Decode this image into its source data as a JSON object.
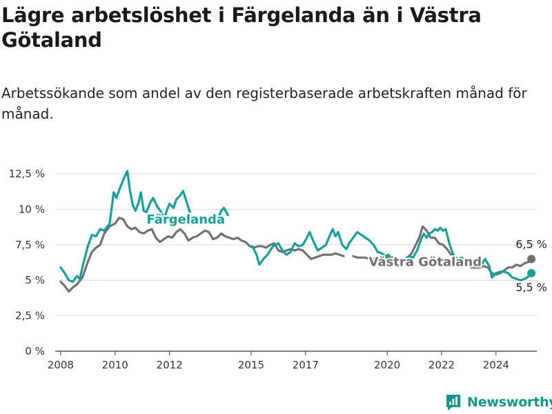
{
  "header": {
    "title": "Lägre arbetslöshet i Färgelanda än i Västra Götaland",
    "subtitle": "Arbetssökande som andel av den registerbaserade arbetskraften månad för månad."
  },
  "brand": {
    "name": "Newsworthy",
    "color": "#14958a"
  },
  "chart_data": {
    "type": "line",
    "title": "Lägre arbetslöshet i Färgelanda än i Västra Götaland",
    "subtitle": "Arbetssökande som andel av den registerbaserade arbetskraften månad för månad.",
    "xlabel": "",
    "ylabel": "",
    "xlim": [
      2007.8,
      2025.5
    ],
    "ylim": [
      0,
      12.5
    ],
    "yticks": [
      0,
      2.5,
      5,
      7.5,
      10,
      12.5
    ],
    "ytick_labels": [
      "0 %",
      "2,5 %",
      "5 %",
      "7,5 %",
      "10 %",
      "12,5 %"
    ],
    "xticks": [
      2008,
      2010,
      2012,
      2015,
      2017,
      2020,
      2022,
      2024
    ],
    "xtick_labels": [
      "2008",
      "2010",
      "2012",
      "2015",
      "2017",
      "2020",
      "2022",
      "2024"
    ],
    "grid": "horizontal",
    "legend": "direct labels",
    "series": [
      {
        "name": "Färgelanda",
        "color": "#14a098",
        "label_at": [
          2012.6,
          9.0
        ],
        "end_label": "5,5 %",
        "segments": [
          [
            [
              2008.0,
              5.9
            ],
            [
              2008.15,
              5.5
            ],
            [
              2008.3,
              5.0
            ],
            [
              2008.45,
              4.9
            ],
            [
              2008.6,
              5.3
            ],
            [
              2008.7,
              5.1
            ],
            [
              2008.85,
              6.3
            ],
            [
              2009.0,
              7.4
            ],
            [
              2009.15,
              8.2
            ],
            [
              2009.3,
              8.1
            ],
            [
              2009.45,
              8.6
            ],
            [
              2009.6,
              8.5
            ],
            [
              2009.8,
              9.0
            ],
            [
              2009.95,
              11.2
            ],
            [
              2010.05,
              10.8
            ],
            [
              2010.2,
              11.6
            ],
            [
              2010.35,
              12.3
            ],
            [
              2010.45,
              12.7
            ],
            [
              2010.55,
              11.3
            ],
            [
              2010.65,
              10.3
            ],
            [
              2010.75,
              9.9
            ],
            [
              2010.85,
              10.4
            ],
            [
              2010.95,
              11.2
            ],
            [
              2011.05,
              9.9
            ],
            [
              2011.15,
              9.8
            ],
            [
              2011.3,
              10.5
            ],
            [
              2011.4,
              10.8
            ],
            [
              2011.55,
              10.2
            ],
            [
              2011.7,
              9.8
            ],
            [
              2011.8,
              9.3
            ],
            [
              2011.9,
              9.9
            ],
            [
              2012.0,
              10.4
            ],
            [
              2012.15,
              10.1
            ],
            [
              2012.25,
              10.7
            ],
            [
              2012.4,
              11.0
            ],
            [
              2012.5,
              11.3
            ],
            [
              2012.6,
              10.7
            ],
            [
              2012.75,
              9.8
            ]
          ],
          [
            [
              2013.8,
              9.4
            ],
            [
              2013.9,
              9.9
            ],
            [
              2014.0,
              10.1
            ],
            [
              2014.15,
              9.6
            ]
          ],
          [
            [
              2015.05,
              7.4
            ],
            [
              2015.2,
              6.8
            ],
            [
              2015.3,
              6.1
            ],
            [
              2015.45,
              6.5
            ],
            [
              2015.6,
              6.8
            ],
            [
              2015.8,
              7.4
            ],
            [
              2016.0,
              7.6
            ],
            [
              2016.15,
              7.1
            ],
            [
              2016.3,
              6.8
            ],
            [
              2016.45,
              7.0
            ],
            [
              2016.6,
              7.6
            ],
            [
              2016.75,
              7.4
            ],
            [
              2016.9,
              7.5
            ],
            [
              2017.05,
              8.0
            ],
            [
              2017.15,
              8.4
            ],
            [
              2017.3,
              7.7
            ],
            [
              2017.45,
              7.1
            ],
            [
              2017.6,
              7.3
            ],
            [
              2017.75,
              7.5
            ],
            [
              2017.9,
              8.2
            ],
            [
              2018.0,
              8.6
            ],
            [
              2018.1,
              8.1
            ],
            [
              2018.2,
              8.4
            ],
            [
              2018.35,
              7.5
            ],
            [
              2018.5,
              7.2
            ],
            [
              2018.6,
              7.6
            ],
            [
              2018.75,
              8.0
            ],
            [
              2018.9,
              8.4
            ],
            [
              2019.05,
              8.2
            ],
            [
              2019.2,
              8.0
            ],
            [
              2019.35,
              7.8
            ],
            [
              2019.5,
              7.5
            ],
            [
              2019.65,
              7.0
            ],
            [
              2019.8,
              6.9
            ],
            [
              2019.95,
              6.7
            ],
            [
              2020.05,
              6.8
            ],
            [
              2020.15,
              6.5
            ]
          ],
          [
            [
              2020.65,
              6.5
            ],
            [
              2020.8,
              6.7
            ],
            [
              2020.95,
              6.6
            ],
            [
              2021.1,
              7.1
            ],
            [
              2021.25,
              7.9
            ],
            [
              2021.35,
              8.3
            ],
            [
              2021.45,
              8.0
            ],
            [
              2021.55,
              8.3
            ],
            [
              2021.65,
              8.4
            ],
            [
              2021.75,
              8.6
            ],
            [
              2021.85,
              8.5
            ],
            [
              2021.95,
              8.7
            ],
            [
              2022.05,
              8.5
            ],
            [
              2022.15,
              8.6
            ],
            [
              2022.3,
              7.5
            ],
            [
              2022.45,
              6.7
            ],
            [
              2022.6,
              6.5
            ],
            [
              2022.75,
              6.6
            ],
            [
              2022.9,
              6.2
            ],
            [
              2023.05,
              6.3
            ],
            [
              2023.2,
              6.0
            ],
            [
              2023.35,
              6.0
            ],
            [
              2023.5,
              6.2
            ],
            [
              2023.6,
              6.5
            ],
            [
              2023.75,
              6.0
            ],
            [
              2023.85,
              5.2
            ],
            [
              2024.0,
              5.5
            ],
            [
              2024.15,
              5.6
            ],
            [
              2024.3,
              5.6
            ],
            [
              2024.45,
              5.5
            ],
            [
              2024.6,
              5.2
            ],
            [
              2024.75,
              5.1
            ],
            [
              2024.9,
              5.0
            ],
            [
              2025.05,
              5.1
            ],
            [
              2025.15,
              5.2
            ],
            [
              2025.3,
              5.5
            ]
          ]
        ]
      },
      {
        "name": "Västra Götaland",
        "color": "#727073",
        "label_at": [
          2021.4,
          6.0
        ],
        "end_label": "6,5 %",
        "segments": [
          [
            [
              2008.0,
              4.9
            ],
            [
              2008.15,
              4.6
            ],
            [
              2008.3,
              4.2
            ],
            [
              2008.45,
              4.5
            ],
            [
              2008.6,
              4.7
            ],
            [
              2008.8,
              5.2
            ],
            [
              2009.0,
              6.3
            ],
            [
              2009.15,
              7.0
            ],
            [
              2009.3,
              7.3
            ],
            [
              2009.45,
              7.5
            ],
            [
              2009.6,
              8.3
            ],
            [
              2009.8,
              8.8
            ],
            [
              2010.0,
              9.0
            ],
            [
              2010.15,
              9.4
            ],
            [
              2010.3,
              9.3
            ],
            [
              2010.45,
              8.8
            ],
            [
              2010.6,
              8.6
            ],
            [
              2010.75,
              8.7
            ],
            [
              2010.9,
              8.4
            ],
            [
              2011.05,
              8.3
            ],
            [
              2011.2,
              8.5
            ],
            [
              2011.35,
              8.6
            ],
            [
              2011.5,
              8.0
            ],
            [
              2011.65,
              7.7
            ],
            [
              2011.8,
              7.9
            ],
            [
              2011.95,
              8.1
            ],
            [
              2012.1,
              8.0
            ],
            [
              2012.25,
              8.4
            ],
            [
              2012.4,
              8.6
            ],
            [
              2012.55,
              8.3
            ],
            [
              2012.7,
              7.8
            ],
            [
              2012.85,
              8.0
            ],
            [
              2013.0,
              8.1
            ],
            [
              2013.15,
              8.3
            ],
            [
              2013.3,
              8.5
            ],
            [
              2013.45,
              8.4
            ],
            [
              2013.6,
              7.9
            ],
            [
              2013.75,
              8.0
            ],
            [
              2013.9,
              8.3
            ],
            [
              2014.05,
              8.1
            ],
            [
              2014.2,
              8.0
            ],
            [
              2014.35,
              7.9
            ],
            [
              2014.5,
              8.0
            ],
            [
              2014.65,
              7.8
            ],
            [
              2014.8,
              7.7
            ],
            [
              2014.95,
              7.4
            ],
            [
              2015.1,
              7.3
            ],
            [
              2015.25,
              7.4
            ],
            [
              2015.4,
              7.4
            ],
            [
              2015.55,
              7.3
            ],
            [
              2015.7,
              7.5
            ],
            [
              2015.85,
              7.6
            ],
            [
              2016.0,
              7.1
            ],
            [
              2016.15,
              7.0
            ],
            [
              2016.3,
              7.1
            ],
            [
              2016.45,
              7.2
            ],
            [
              2016.6,
              7.1
            ],
            [
              2016.75,
              7.2
            ],
            [
              2016.9,
              7.1
            ],
            [
              2017.05,
              6.8
            ],
            [
              2017.2,
              6.5
            ],
            [
              2017.35,
              6.6
            ],
            [
              2017.5,
              6.7
            ],
            [
              2017.65,
              6.8
            ],
            [
              2017.8,
              6.8
            ],
            [
              2017.95,
              6.8
            ],
            [
              2018.1,
              6.9
            ],
            [
              2018.25,
              6.8
            ],
            [
              2018.4,
              6.7
            ]
          ],
          [
            [
              2018.75,
              6.7
            ],
            [
              2018.9,
              6.6
            ],
            [
              2019.05,
              6.6
            ],
            [
              2019.2,
              6.6
            ],
            [
              2019.35,
              6.5
            ],
            [
              2019.5,
              6.5
            ],
            [
              2019.65,
              6.6
            ],
            [
              2019.8,
              6.6
            ],
            [
              2019.95,
              6.6
            ],
            [
              2020.05,
              6.6
            ],
            [
              2020.2,
              6.6
            ]
          ],
          [
            [
              2020.6,
              6.5
            ],
            [
              2020.75,
              6.6
            ],
            [
              2020.9,
              6.9
            ],
            [
              2021.05,
              7.5
            ],
            [
              2021.2,
              8.1
            ],
            [
              2021.3,
              8.8
            ],
            [
              2021.45,
              8.5
            ],
            [
              2021.6,
              8.0
            ],
            [
              2021.75,
              8.0
            ],
            [
              2021.9,
              7.6
            ],
            [
              2022.05,
              7.5
            ],
            [
              2022.2,
              7.2
            ],
            [
              2022.35,
              6.8
            ],
            [
              2022.5,
              6.5
            ],
            [
              2022.65,
              6.4
            ],
            [
              2022.8,
              6.2
            ],
            [
              2022.95,
              6.1
            ],
            [
              2023.1,
              5.9
            ],
            [
              2023.25,
              5.9
            ],
            [
              2023.4,
              5.9
            ],
            [
              2023.55,
              6.0
            ],
            [
              2023.7,
              5.9
            ],
            [
              2023.85,
              5.5
            ],
            [
              2024.0,
              5.4
            ],
            [
              2024.15,
              5.5
            ],
            [
              2024.3,
              5.7
            ],
            [
              2024.45,
              5.9
            ],
            [
              2024.6,
              5.9
            ],
            [
              2024.75,
              6.1
            ],
            [
              2024.9,
              6.0
            ],
            [
              2025.05,
              6.2
            ],
            [
              2025.2,
              6.3
            ],
            [
              2025.3,
              6.5
            ]
          ]
        ]
      }
    ]
  }
}
